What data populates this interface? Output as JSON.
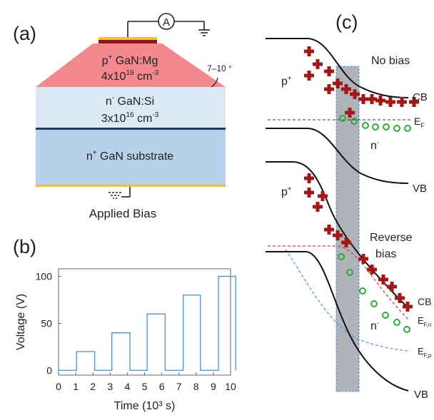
{
  "panel_labels": {
    "a": "(a)",
    "b": "(b)",
    "c": "(c)"
  },
  "device": {
    "ammeter": "A",
    "angle": "7–10 °",
    "p_layer": {
      "prefix": "p",
      "prefix_sup": "+",
      "name": " GaN:Mg",
      "conc_base": "4x10",
      "conc_exp": "19",
      "conc_unit": " cm",
      "conc_unit_exp": "-3"
    },
    "n_layer": {
      "prefix": "n",
      "prefix_sup": "-",
      "name": " GaN:Si",
      "conc_base": "3x10",
      "conc_exp": "16",
      "conc_unit": " cm",
      "conc_unit_exp": "-3"
    },
    "substrate": {
      "prefix": "n",
      "prefix_sup": "+",
      "name": " GaN substrate"
    },
    "bias_label": "Applied Bias",
    "colors": {
      "p_layer": "#f4888f",
      "n_layer": "#dce9f5",
      "substrate": "#b7d1ea",
      "contact": "#f1c232",
      "interface": "#1f3b63"
    }
  },
  "chart_data": {
    "type": "line",
    "xlabel": "Time (10³ s)",
    "ylabel": "Voltage (V)",
    "xlim": [
      0,
      10
    ],
    "ylim": [
      -5,
      108
    ],
    "xticks": [
      0,
      1,
      2,
      3,
      4,
      5,
      6,
      7,
      8,
      9,
      10
    ],
    "yticks": [
      0,
      50,
      100
    ],
    "color": "#4a8fd0",
    "series": [
      {
        "x": [
          0,
          1.05,
          1.05,
          2.1,
          2.1,
          3.1,
          3.1,
          4.15,
          4.15,
          5.15,
          5.15,
          6.2,
          6.2,
          7.25,
          7.25,
          8.25,
          8.25,
          9.3,
          9.3,
          10.3,
          10.3
        ],
        "y": [
          0,
          0,
          20,
          20,
          0,
          0,
          40,
          40,
          0,
          0,
          60,
          60,
          0,
          0,
          80,
          80,
          0,
          0,
          100,
          100,
          0
        ]
      }
    ]
  },
  "band_diagram": {
    "no_bias": "No bias",
    "reverse": "Reverse",
    "bias": "bias",
    "p_label": "p",
    "p_sup": "+",
    "n_label": "n",
    "n_sup": "-",
    "cb": "CB",
    "vb": "VB",
    "ef": "E",
    "ef_sub": "F",
    "efn": "E",
    "efn_sub": "F,n",
    "efp": "E",
    "efp_sub": "F,p",
    "colors": {
      "hole": "#a01818",
      "electron": "#2eaa3c",
      "quasi_n": "#e03030",
      "quasi_p": "#4a90d9",
      "depletion": "#b0b4ba"
    }
  }
}
